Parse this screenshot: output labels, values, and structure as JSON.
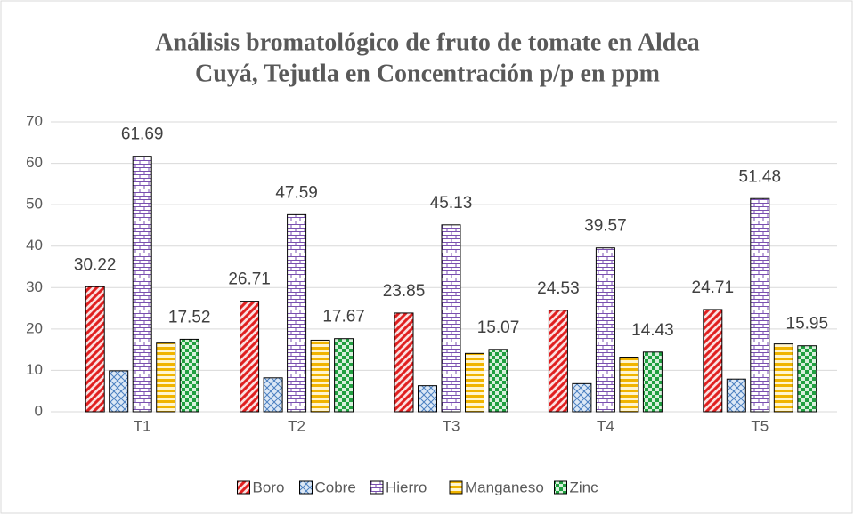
{
  "chart_data": {
    "type": "bar",
    "title": [
      "Análisis bromatológico de fruto de tomate en Aldea",
      "Cuyá, Tejutla en Concentración p/p en ppm"
    ],
    "categories": [
      "T1",
      "T2",
      "T3",
      "T4",
      "T5"
    ],
    "series": [
      {
        "name": "Boro",
        "color": "#e02020",
        "pattern": "diagonal",
        "show_labels": true,
        "values": [
          30.22,
          26.71,
          23.85,
          24.53,
          24.71
        ]
      },
      {
        "name": "Cobre",
        "color": "#4a7fc0",
        "pattern": "crosshatch",
        "show_labels": false,
        "values": [
          9.9,
          8.2,
          6.3,
          6.8,
          7.9
        ]
      },
      {
        "name": "Hierro",
        "color": "#7a50b0",
        "pattern": "brick",
        "show_labels": true,
        "values": [
          61.69,
          47.59,
          45.13,
          39.57,
          51.48
        ]
      },
      {
        "name": "Manganeso",
        "color": "#f0b400",
        "pattern": "horizontal",
        "show_labels": false,
        "values": [
          16.6,
          17.3,
          14.1,
          13.2,
          16.4
        ]
      },
      {
        "name": "Zinc",
        "color": "#20a040",
        "pattern": "checker",
        "show_labels": true,
        "values": [
          17.52,
          17.67,
          15.07,
          14.43,
          15.95
        ]
      }
    ],
    "ylim": [
      0,
      70
    ],
    "yticks": [
      0,
      10,
      20,
      30,
      40,
      50,
      60,
      70
    ],
    "grid": true,
    "legend": "bottom"
  }
}
